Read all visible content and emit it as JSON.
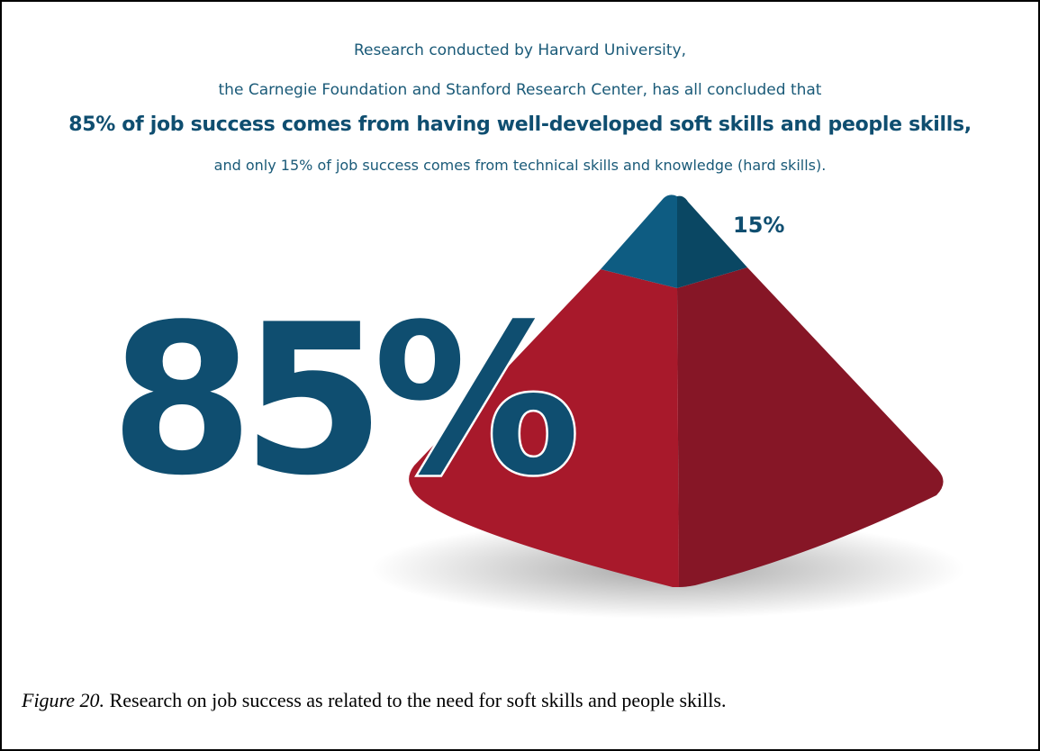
{
  "intro": {
    "line1": "Research conducted by Harvard University,",
    "line2": "the Carnegie Foundation and Stanford Research Center, has all concluded that",
    "line3": "85% of job success comes from having well-developed soft skills and people skills,",
    "line4": "and only 15% of job success comes from technical skills and knowledge (hard skills)."
  },
  "pyramid": {
    "top_label": "15%",
    "big_label": "85%",
    "colors": {
      "top_left": "#0e5c82",
      "top_right": "#0a4763",
      "base_left": "#a8192b",
      "base_right": "#861626",
      "text": "#0f4e70"
    }
  },
  "caption": {
    "figure_label": "Figure 20.",
    "text": " Research on job success as related to the need for soft skills and people skills."
  }
}
